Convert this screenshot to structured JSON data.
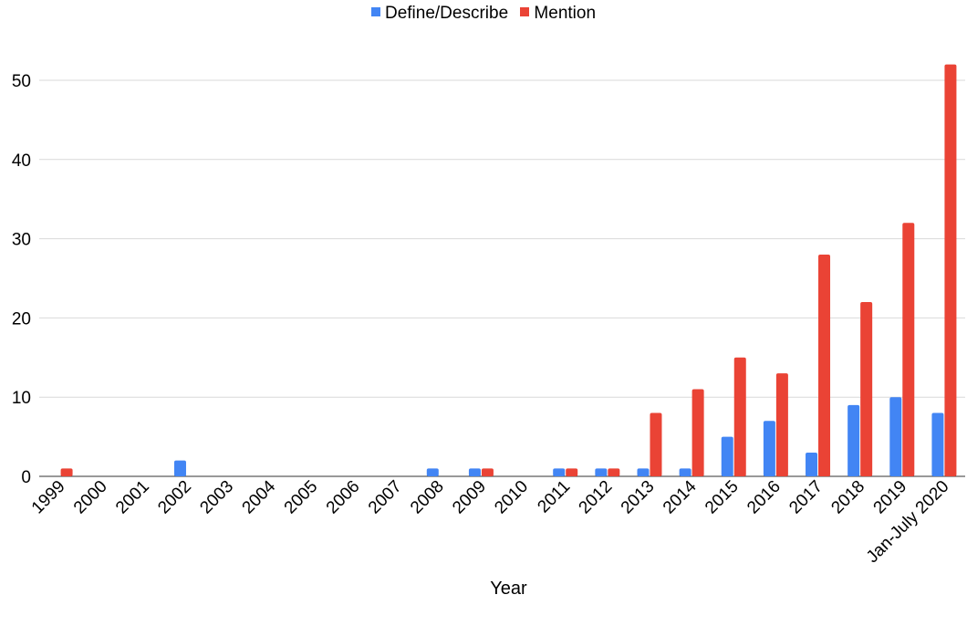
{
  "chart_data": {
    "type": "bar",
    "title": "",
    "xlabel": "Year",
    "ylabel": "",
    "ylim": [
      0,
      54
    ],
    "yticks": [
      0,
      10,
      20,
      30,
      40,
      50
    ],
    "grid": true,
    "legend_position": "top-center",
    "categories": [
      "1999",
      "2000",
      "2001",
      "2002",
      "2003",
      "2004",
      "2005",
      "2006",
      "2007",
      "2008",
      "2009",
      "2010",
      "2011",
      "2012",
      "2013",
      "2014",
      "2015",
      "2016",
      "2017",
      "2018",
      "2019",
      "Jan-July 2020"
    ],
    "series": [
      {
        "name": "Define/Describe",
        "color": "#4285f4",
        "values": [
          0,
          0,
          0,
          2,
          0,
          0,
          0,
          0,
          0,
          1,
          1,
          0,
          1,
          1,
          1,
          1,
          5,
          7,
          3,
          9,
          10,
          8
        ]
      },
      {
        "name": "Mention",
        "color": "#ea4335",
        "values": [
          1,
          0,
          0,
          0,
          0,
          0,
          0,
          0,
          0,
          0,
          1,
          0,
          1,
          1,
          8,
          11,
          15,
          13,
          28,
          22,
          32,
          52
        ]
      }
    ]
  }
}
